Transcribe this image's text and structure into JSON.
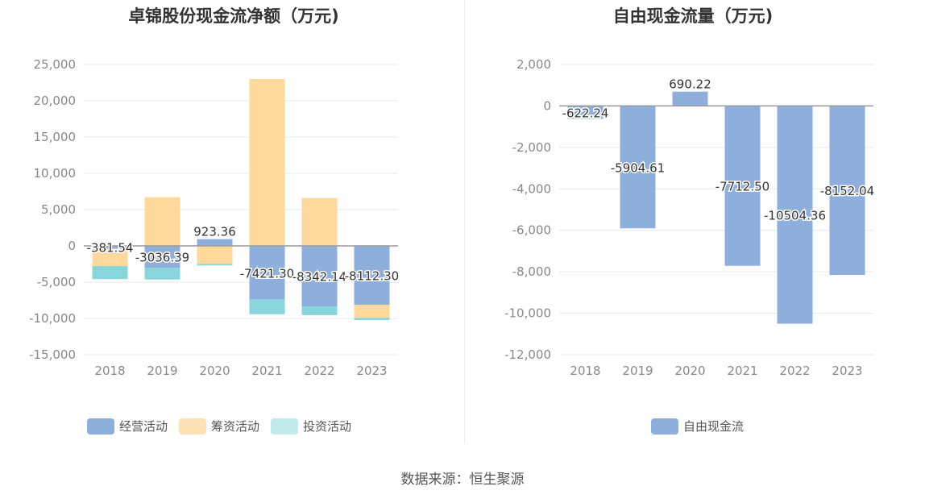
{
  "source_text": "数据来源：恒生聚源",
  "chart_data": [
    {
      "type": "bar",
      "stacked": true,
      "title": "卓锦股份现金流净额（万元)",
      "categories": [
        "2018",
        "2019",
        "2020",
        "2021",
        "2022",
        "2023"
      ],
      "ylim": [
        -15000,
        25000
      ],
      "yticks": [
        25000,
        20000,
        15000,
        10000,
        5000,
        0,
        -5000,
        -10000,
        -15000
      ],
      "ytick_labels": [
        "25,000",
        "20,000",
        "15,000",
        "10,000",
        "5,000",
        "0",
        "-5,000",
        "-10,000",
        "-15,000"
      ],
      "grid": true,
      "legend_position": "bottom",
      "series": [
        {
          "name": "经营活动",
          "color": "#8eaedc",
          "values": [
            -381.54,
            -3036.39,
            923.36,
            -7421.3,
            -8342.14,
            -8112.3
          ]
        },
        {
          "name": "筹资活动",
          "color": "#fed99b",
          "values": [
            -2400,
            6700,
            -2500,
            23000,
            6600,
            -1800
          ]
        },
        {
          "name": "投资活动",
          "color": "#88d6dc",
          "values": [
            -1800,
            -1600,
            -200,
            -2000,
            -1200,
            -300
          ]
        }
      ],
      "data_labels": [
        "-381.54",
        "-3036.39",
        "923.36",
        "-7421.30",
        "-8342.14",
        "-8112.30"
      ]
    },
    {
      "type": "bar",
      "title": "自由现金流量（万元)",
      "categories": [
        "2018",
        "2019",
        "2020",
        "2021",
        "2022",
        "2023"
      ],
      "ylim": [
        -12000,
        2000
      ],
      "yticks": [
        2000,
        0,
        -2000,
        -4000,
        -6000,
        -8000,
        -10000,
        -12000
      ],
      "ytick_labels": [
        "2,000",
        "0",
        "-2,000",
        "-4,000",
        "-6,000",
        "-8,000",
        "-10,000",
        "-12,000"
      ],
      "grid": true,
      "legend_position": "bottom",
      "series": [
        {
          "name": "自由现金流",
          "color": "#8eaedc",
          "values": [
            -622.24,
            -5904.61,
            690.22,
            -7712.5,
            -10504.36,
            -8152.04
          ]
        }
      ],
      "data_labels": [
        "-622.24",
        "-5904.61",
        "690.22",
        "-7712.50",
        "-10504.36",
        "-8152.04"
      ]
    }
  ]
}
